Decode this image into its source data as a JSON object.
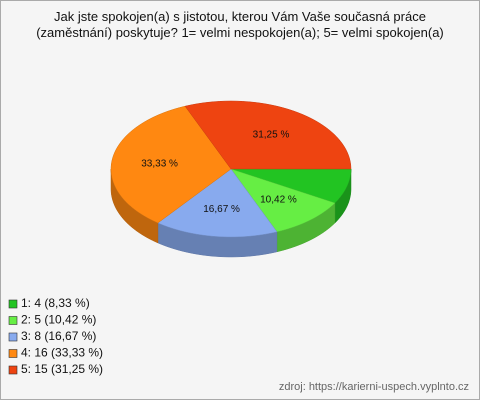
{
  "chart_data": {
    "type": "pie3d",
    "title": "Jak jste spokojen(a) s jistotou, kterou Vám Vaše současná práce (zaměstnání) poskytuje? 1= velmi nespokojen(a); 5= velmi spokojen(a)",
    "categories": [
      "1: 4 (8,33 %)",
      "2: 5 (10,42 %)",
      "3: 8 (16,67 %)",
      "4: 16 (33,33 %)",
      "5: 15 (31,25 %)"
    ],
    "values": [
      8.33,
      10.42,
      16.67,
      33.33,
      31.25
    ],
    "value_labels": [
      null,
      "10,42 %",
      "16,67 %",
      "33,33 %",
      "31,25 %"
    ],
    "colors": [
      "#22c422",
      "#66ee44",
      "#88aaee",
      "#ff8811",
      "#ee4411"
    ],
    "source": "zdroj: https://karierni-uspech.vyplnto.cz"
  }
}
